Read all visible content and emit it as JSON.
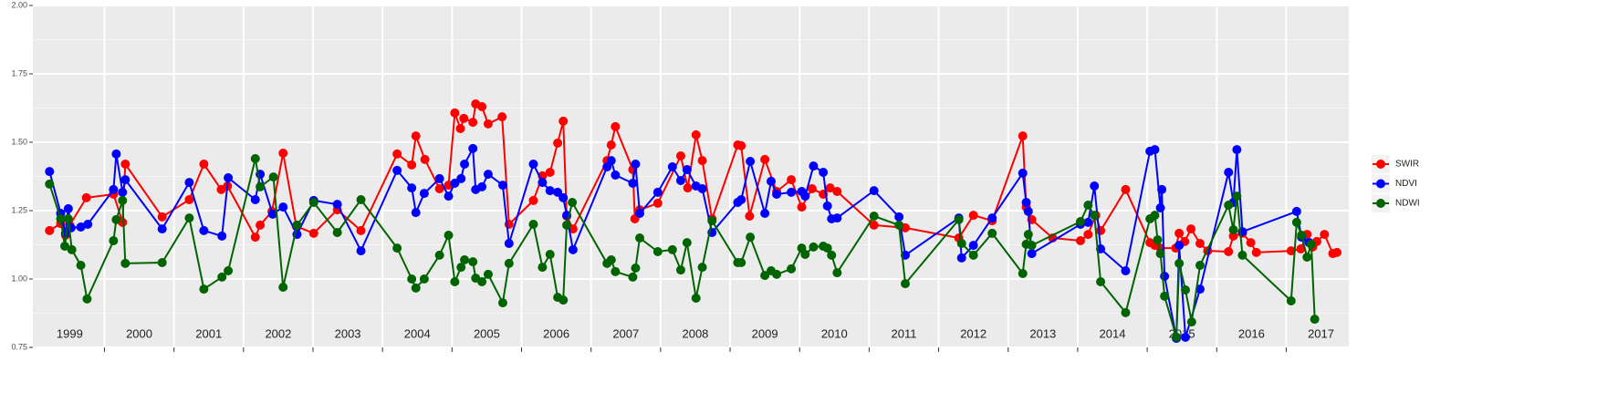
{
  "chart_data": {
    "type": "line",
    "xlim": [
      1998.97,
      2017.9
    ],
    "ylim": [
      0.75,
      2.0
    ],
    "yticks": [
      {
        "value": 0.75,
        "label": "0.75"
      },
      {
        "value": 1.0,
        "label": "1.00"
      },
      {
        "value": 1.25,
        "label": "1.25"
      },
      {
        "value": 1.5,
        "label": "1.50"
      },
      {
        "value": 1.75,
        "label": "1.75"
      },
      {
        "value": 2.0,
        "label": "2.00"
      }
    ],
    "xgrid": [
      2000,
      2001,
      2002,
      2003,
      2004,
      2005,
      2006,
      2007,
      2008,
      2009,
      2010,
      2011,
      2012,
      2013,
      2014,
      2015,
      2016,
      2017
    ],
    "xticks": [
      {
        "value": 1999.5,
        "label": "1999"
      },
      {
        "value": 2000.5,
        "label": "2000"
      },
      {
        "value": 2001.5,
        "label": "2001"
      },
      {
        "value": 2002.5,
        "label": "2002"
      },
      {
        "value": 2003.5,
        "label": "2003"
      },
      {
        "value": 2004.5,
        "label": "2004"
      },
      {
        "value": 2005.5,
        "label": "2005"
      },
      {
        "value": 2006.5,
        "label": "2006"
      },
      {
        "value": 2007.5,
        "label": "2007"
      },
      {
        "value": 2008.5,
        "label": "2008"
      },
      {
        "value": 2009.5,
        "label": "2009"
      },
      {
        "value": 2010.5,
        "label": "2010"
      },
      {
        "value": 2011.5,
        "label": "2011"
      },
      {
        "value": 2012.5,
        "label": "2012"
      },
      {
        "value": 2013.5,
        "label": "2013"
      },
      {
        "value": 2014.5,
        "label": "2014"
      },
      {
        "value": 2015.5,
        "label": "2015"
      },
      {
        "value": 2016.5,
        "label": "2016"
      },
      {
        "value": 2017.5,
        "label": "2017"
      }
    ],
    "grid": true,
    "legend": "right",
    "series": [
      {
        "name": "SWIR",
        "color": "#ff0000",
        "x": [
          1999.21,
          1999.37,
          1999.44,
          1999.5,
          1999.74,
          2000.13,
          2000.26,
          2000.3,
          2000.83,
          2001.22,
          2001.43,
          2001.68,
          2001.77,
          2002.17,
          2002.24,
          2002.41,
          2002.57,
          2002.76,
          2003.01,
          2003.35,
          2003.69,
          2004.21,
          2004.42,
          2004.48,
          2004.61,
          2004.82,
          2004.95,
          2005.04,
          2005.12,
          2005.17,
          2005.3,
          2005.34,
          2005.43,
          2005.52,
          2005.72,
          2005.82,
          2006.17,
          2006.3,
          2006.41,
          2006.52,
          2006.6,
          2006.65,
          2006.74,
          2007.23,
          2007.29,
          2007.35,
          2007.6,
          2007.63,
          2007.7,
          2007.96,
          2008.29,
          2008.39,
          2008.51,
          2008.6,
          2008.74,
          2009.11,
          2009.16,
          2009.28,
          2009.5,
          2009.67,
          2009.88,
          2010.03,
          2010.18,
          2010.34,
          2010.44,
          2010.54,
          2011.07,
          2011.52,
          2012.29,
          2012.5,
          2012.77,
          2013.21,
          2013.26,
          2013.34,
          2013.64,
          2014.04,
          2014.15,
          2014.26,
          2014.33,
          2014.69,
          2015.04,
          2015.11,
          2015.19,
          2015.41,
          2015.46,
          2015.54,
          2015.63,
          2015.76,
          2015.87,
          2016.17,
          2016.24,
          2016.37,
          2016.49,
          2016.57,
          2017.07,
          2017.21,
          2017.3,
          2017.38,
          2017.44,
          2017.55,
          2017.67,
          2017.73
        ],
        "values": [
          1.177,
          1.203,
          1.16,
          1.197,
          1.297,
          1.31,
          1.207,
          1.42,
          1.227,
          1.29,
          1.42,
          1.327,
          1.34,
          1.153,
          1.197,
          1.247,
          1.46,
          1.193,
          1.167,
          1.253,
          1.177,
          1.457,
          1.417,
          1.523,
          1.437,
          1.33,
          1.343,
          1.607,
          1.55,
          1.587,
          1.573,
          1.64,
          1.63,
          1.567,
          1.593,
          1.2,
          1.287,
          1.377,
          1.39,
          1.497,
          1.577,
          1.23,
          1.183,
          1.433,
          1.49,
          1.557,
          1.4,
          1.22,
          1.253,
          1.277,
          1.45,
          1.333,
          1.527,
          1.433,
          1.22,
          1.49,
          1.487,
          1.23,
          1.437,
          1.32,
          1.363,
          1.263,
          1.33,
          1.31,
          1.333,
          1.32,
          1.197,
          1.187,
          1.15,
          1.233,
          1.213,
          1.523,
          1.263,
          1.217,
          1.15,
          1.14,
          1.163,
          1.233,
          1.177,
          1.327,
          1.133,
          1.123,
          1.113,
          1.113,
          1.167,
          1.137,
          1.183,
          1.13,
          1.103,
          1.1,
          1.157,
          1.167,
          1.133,
          1.097,
          1.103,
          1.11,
          1.163,
          1.117,
          1.137,
          1.163,
          1.093,
          1.097
        ]
      },
      {
        "name": "NDVI",
        "color": "#0000ff",
        "x": [
          1999.21,
          1999.37,
          1999.44,
          1999.48,
          1999.52,
          1999.66,
          1999.76,
          2000.13,
          2000.17,
          2000.26,
          2000.3,
          2000.83,
          2001.22,
          2001.43,
          2001.69,
          2001.78,
          2002.17,
          2002.24,
          2002.42,
          2002.57,
          2002.77,
          2003.01,
          2003.35,
          2003.69,
          2004.21,
          2004.42,
          2004.48,
          2004.6,
          2004.82,
          2004.95,
          2005.04,
          2005.13,
          2005.18,
          2005.3,
          2005.34,
          2005.43,
          2005.52,
          2005.73,
          2005.82,
          2006.17,
          2006.3,
          2006.41,
          2006.52,
          2006.6,
          2006.65,
          2006.74,
          2007.23,
          2007.29,
          2007.35,
          2007.6,
          2007.64,
          2007.7,
          2007.96,
          2008.17,
          2008.29,
          2008.38,
          2008.51,
          2008.6,
          2008.74,
          2009.11,
          2009.16,
          2009.29,
          2009.5,
          2009.59,
          2009.67,
          2009.88,
          2010.03,
          2010.08,
          2010.2,
          2010.34,
          2010.4,
          2010.46,
          2010.54,
          2011.07,
          2011.43,
          2011.52,
          2012.29,
          2012.33,
          2012.5,
          2012.77,
          2013.21,
          2013.26,
          2013.29,
          2013.34,
          2014.04,
          2014.15,
          2014.24,
          2014.33,
          2014.69,
          2015.04,
          2015.11,
          2015.19,
          2015.21,
          2015.25,
          2015.42,
          2015.46,
          2015.55,
          2015.76,
          2016.17,
          2016.24,
          2016.29,
          2016.37,
          2017.15,
          2017.22,
          2017.33
        ],
        "values": [
          1.393,
          1.24,
          1.167,
          1.257,
          1.187,
          1.19,
          1.2,
          1.327,
          1.457,
          1.317,
          1.363,
          1.183,
          1.353,
          1.177,
          1.157,
          1.37,
          1.29,
          1.383,
          1.237,
          1.263,
          1.163,
          1.287,
          1.273,
          1.103,
          1.397,
          1.333,
          1.243,
          1.313,
          1.367,
          1.303,
          1.35,
          1.367,
          1.42,
          1.477,
          1.327,
          1.337,
          1.383,
          1.343,
          1.13,
          1.42,
          1.353,
          1.323,
          1.317,
          1.297,
          1.233,
          1.107,
          1.41,
          1.433,
          1.38,
          1.35,
          1.42,
          1.24,
          1.317,
          1.41,
          1.36,
          1.4,
          1.34,
          1.33,
          1.17,
          1.28,
          1.29,
          1.43,
          1.24,
          1.357,
          1.31,
          1.317,
          1.32,
          1.303,
          1.413,
          1.39,
          1.267,
          1.22,
          1.223,
          1.323,
          1.227,
          1.087,
          1.223,
          1.077,
          1.123,
          1.223,
          1.387,
          1.28,
          1.247,
          1.093,
          1.2,
          1.207,
          1.34,
          1.11,
          1.03,
          1.467,
          1.473,
          1.26,
          1.327,
          1.01,
          0.783,
          1.123,
          0.787,
          0.963,
          1.39,
          1.28,
          1.473,
          1.173,
          1.247,
          1.153,
          1.133
        ]
      },
      {
        "name": "NDWI",
        "color": "#006400",
        "x": [
          1999.21,
          1999.37,
          1999.43,
          1999.48,
          1999.53,
          1999.66,
          1999.75,
          2000.13,
          2000.17,
          2000.26,
          2000.3,
          2000.83,
          2001.22,
          2001.43,
          2001.69,
          2001.78,
          2002.17,
          2002.24,
          2002.43,
          2002.57,
          2002.77,
          2003.01,
          2003.35,
          2003.69,
          2004.21,
          2004.42,
          2004.48,
          2004.6,
          2004.82,
          2004.95,
          2005.04,
          2005.13,
          2005.18,
          2005.3,
          2005.34,
          2005.43,
          2005.52,
          2005.73,
          2005.82,
          2006.17,
          2006.3,
          2006.41,
          2006.52,
          2006.6,
          2006.65,
          2006.73,
          2007.23,
          2007.29,
          2007.35,
          2007.6,
          2007.64,
          2007.7,
          2007.96,
          2008.17,
          2008.29,
          2008.38,
          2008.51,
          2008.6,
          2008.74,
          2009.11,
          2009.16,
          2009.29,
          2009.5,
          2009.59,
          2009.67,
          2009.88,
          2010.03,
          2010.08,
          2010.2,
          2010.34,
          2010.4,
          2010.46,
          2010.54,
          2011.07,
          2011.43,
          2011.52,
          2012.29,
          2012.33,
          2012.5,
          2012.77,
          2013.21,
          2013.26,
          2013.29,
          2013.34,
          2014.04,
          2014.15,
          2014.24,
          2014.33,
          2014.69,
          2015.04,
          2015.11,
          2015.15,
          2015.19,
          2015.25,
          2015.42,
          2015.46,
          2015.55,
          2015.64,
          2015.76,
          2016.17,
          2016.24,
          2016.29,
          2016.37,
          2017.07,
          2017.15,
          2017.22,
          2017.3,
          2017.36,
          2017.41
        ],
        "values": [
          1.347,
          1.22,
          1.12,
          1.22,
          1.107,
          1.05,
          0.927,
          1.14,
          1.217,
          1.287,
          1.057,
          1.06,
          1.223,
          0.963,
          1.007,
          1.03,
          1.44,
          1.337,
          1.373,
          0.97,
          1.197,
          1.28,
          1.17,
          1.29,
          1.113,
          1.0,
          0.967,
          1.0,
          1.087,
          1.16,
          0.99,
          1.043,
          1.07,
          1.063,
          1.003,
          0.99,
          1.017,
          0.913,
          1.057,
          1.2,
          1.043,
          1.09,
          0.933,
          0.923,
          1.197,
          1.28,
          1.057,
          1.07,
          1.027,
          1.007,
          1.04,
          1.15,
          1.1,
          1.107,
          1.033,
          1.133,
          0.93,
          1.043,
          1.213,
          1.06,
          1.06,
          1.153,
          1.013,
          1.03,
          1.017,
          1.037,
          1.113,
          1.09,
          1.117,
          1.12,
          1.113,
          1.087,
          1.023,
          1.23,
          1.197,
          0.983,
          1.217,
          1.13,
          1.087,
          1.167,
          1.02,
          1.127,
          1.163,
          1.123,
          1.21,
          1.27,
          1.233,
          0.99,
          0.877,
          1.22,
          1.233,
          1.143,
          1.093,
          0.937,
          0.787,
          1.057,
          0.96,
          0.843,
          1.05,
          1.27,
          1.18,
          1.303,
          1.087,
          0.92,
          1.207,
          1.16,
          1.08,
          1.127,
          0.853
        ]
      }
    ]
  }
}
